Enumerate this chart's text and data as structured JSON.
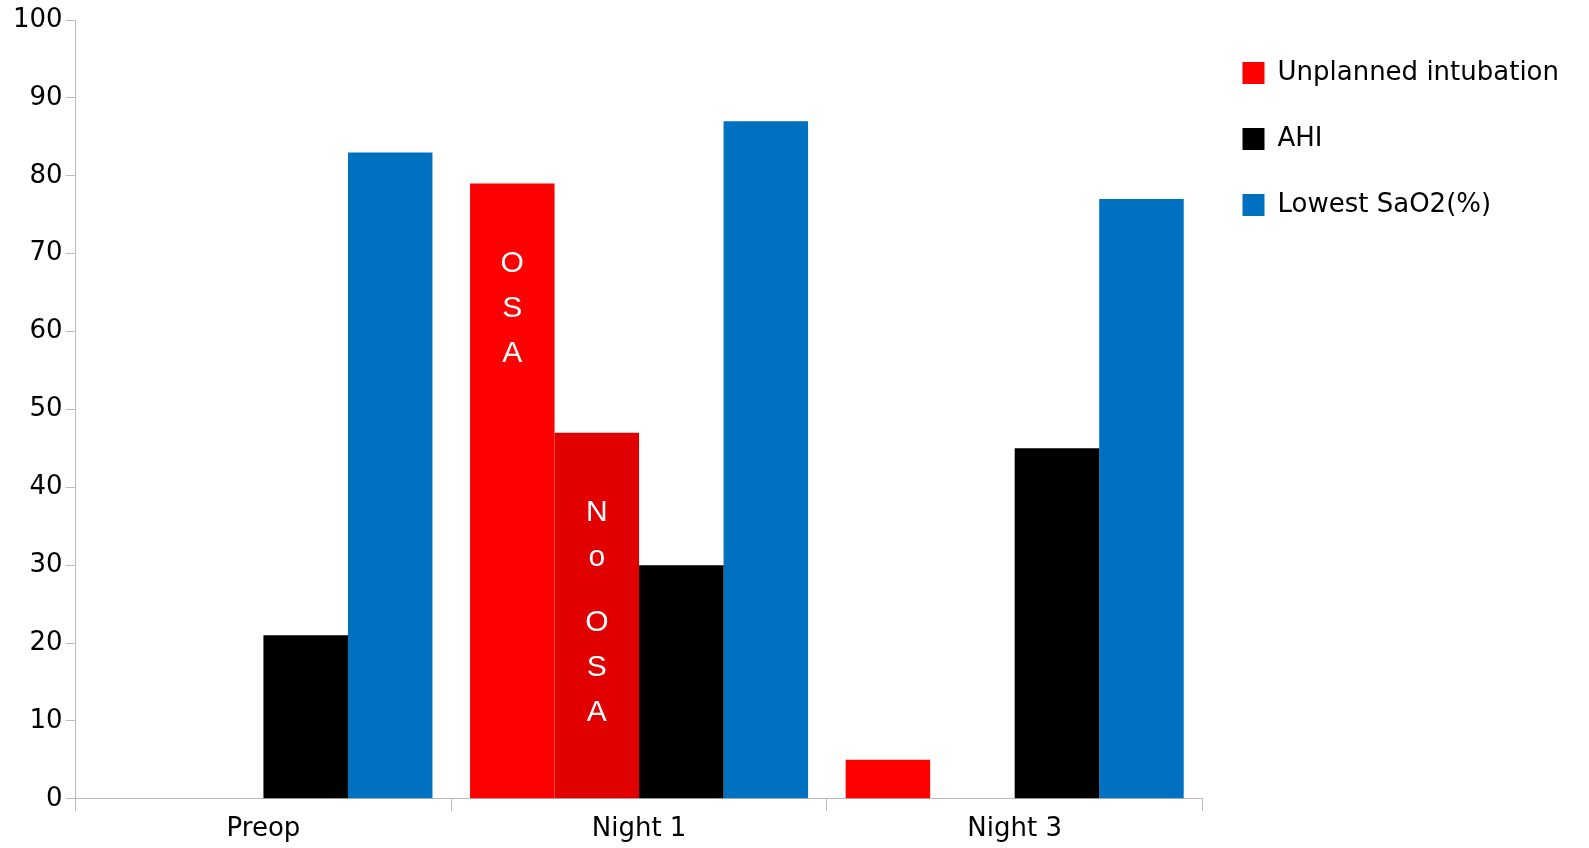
{
  "chart_data": {
    "type": "bar",
    "categories": [
      "Preop",
      "Night 1",
      "Night 3"
    ],
    "series": [
      {
        "name": "Unplanned intubation",
        "color": "#ff0000",
        "values": [
          null,
          79,
          5
        ]
      },
      {
        "color": "#e00000",
        "values": [
          null,
          47,
          null
        ]
      },
      {
        "name": "AHI",
        "color": "#000000",
        "values": [
          21,
          30,
          45
        ]
      },
      {
        "name": "Lowest SaO2(%)",
        "color": "#0070c0",
        "values": [
          83,
          87,
          77
        ]
      }
    ],
    "ylim": [
      0,
      100
    ],
    "yticks": [
      0,
      10,
      20,
      30,
      40,
      50,
      60,
      70,
      80,
      90,
      100
    ],
    "grid": false,
    "legend": "right",
    "annotations": [
      "OSA",
      "No OSA"
    ]
  }
}
